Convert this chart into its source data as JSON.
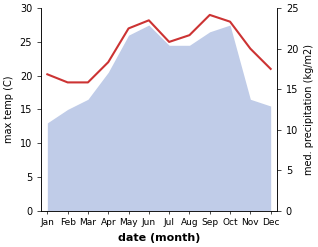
{
  "months": [
    "Jan",
    "Feb",
    "Mar",
    "Apr",
    "May",
    "Jun",
    "Jul",
    "Aug",
    "Sep",
    "Oct",
    "Nov",
    "Dec"
  ],
  "max_temp": [
    20.2,
    19.0,
    19.0,
    22.0,
    27.0,
    28.2,
    25.0,
    26.0,
    29.0,
    28.0,
    24.0,
    21.0
  ],
  "precipitation": [
    13.0,
    15.0,
    16.5,
    20.5,
    26.0,
    27.5,
    24.5,
    24.5,
    26.5,
    27.5,
    16.5,
    15.5
  ],
  "temp_color": "#cc3333",
  "precip_fill_color": "#c0cce8",
  "left_ylabel": "max temp (C)",
  "right_ylabel": "med. precipitation (kg/m2)",
  "xlabel": "date (month)",
  "ylim_left": [
    0,
    30
  ],
  "ylim_right": [
    0,
    25
  ],
  "yticks_left": [
    0,
    5,
    10,
    15,
    20,
    25,
    30
  ],
  "yticks_right": [
    0,
    5,
    10,
    15,
    20,
    25
  ],
  "figsize": [
    3.18,
    2.47
  ],
  "dpi": 100
}
